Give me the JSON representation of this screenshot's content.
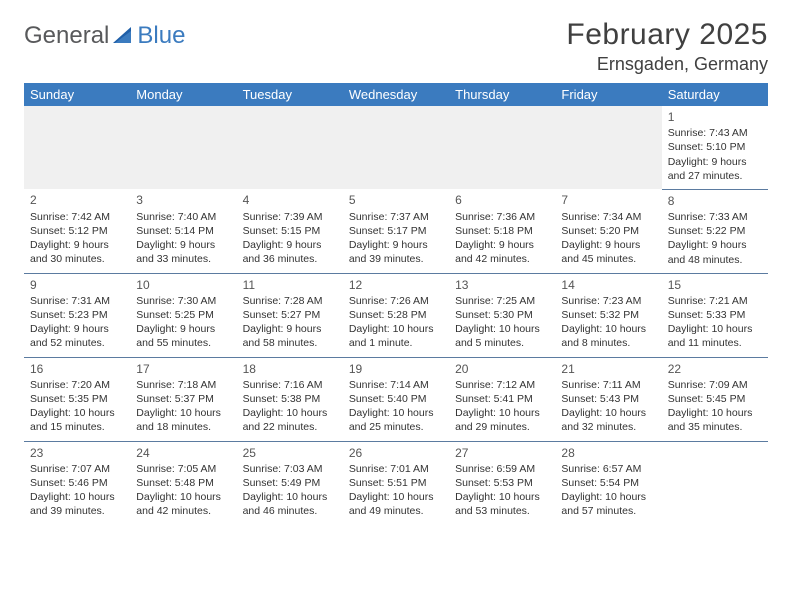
{
  "logo": {
    "word1": "General",
    "word2": "Blue"
  },
  "title": "February 2025",
  "location": "Ernsgaden, Germany",
  "columns": [
    "Sunday",
    "Monday",
    "Tuesday",
    "Wednesday",
    "Thursday",
    "Friday",
    "Saturday"
  ],
  "colors": {
    "header_bg": "#3b7bbf",
    "header_fg": "#ffffff",
    "rule": "#5b7ba0",
    "blank_bg": "#f0f0f0",
    "text": "#333333",
    "logo_gray": "#58595b",
    "logo_blue": "#3b7bbf"
  },
  "weeks": [
    [
      null,
      null,
      null,
      null,
      null,
      null,
      {
        "n": "1",
        "sr": "Sunrise: 7:43 AM",
        "ss": "Sunset: 5:10 PM",
        "dl1": "Daylight: 9 hours",
        "dl2": "and 27 minutes."
      }
    ],
    [
      {
        "n": "2",
        "sr": "Sunrise: 7:42 AM",
        "ss": "Sunset: 5:12 PM",
        "dl1": "Daylight: 9 hours",
        "dl2": "and 30 minutes."
      },
      {
        "n": "3",
        "sr": "Sunrise: 7:40 AM",
        "ss": "Sunset: 5:14 PM",
        "dl1": "Daylight: 9 hours",
        "dl2": "and 33 minutes."
      },
      {
        "n": "4",
        "sr": "Sunrise: 7:39 AM",
        "ss": "Sunset: 5:15 PM",
        "dl1": "Daylight: 9 hours",
        "dl2": "and 36 minutes."
      },
      {
        "n": "5",
        "sr": "Sunrise: 7:37 AM",
        "ss": "Sunset: 5:17 PM",
        "dl1": "Daylight: 9 hours",
        "dl2": "and 39 minutes."
      },
      {
        "n": "6",
        "sr": "Sunrise: 7:36 AM",
        "ss": "Sunset: 5:18 PM",
        "dl1": "Daylight: 9 hours",
        "dl2": "and 42 minutes."
      },
      {
        "n": "7",
        "sr": "Sunrise: 7:34 AM",
        "ss": "Sunset: 5:20 PM",
        "dl1": "Daylight: 9 hours",
        "dl2": "and 45 minutes."
      },
      {
        "n": "8",
        "sr": "Sunrise: 7:33 AM",
        "ss": "Sunset: 5:22 PM",
        "dl1": "Daylight: 9 hours",
        "dl2": "and 48 minutes."
      }
    ],
    [
      {
        "n": "9",
        "sr": "Sunrise: 7:31 AM",
        "ss": "Sunset: 5:23 PM",
        "dl1": "Daylight: 9 hours",
        "dl2": "and 52 minutes."
      },
      {
        "n": "10",
        "sr": "Sunrise: 7:30 AM",
        "ss": "Sunset: 5:25 PM",
        "dl1": "Daylight: 9 hours",
        "dl2": "and 55 minutes."
      },
      {
        "n": "11",
        "sr": "Sunrise: 7:28 AM",
        "ss": "Sunset: 5:27 PM",
        "dl1": "Daylight: 9 hours",
        "dl2": "and 58 minutes."
      },
      {
        "n": "12",
        "sr": "Sunrise: 7:26 AM",
        "ss": "Sunset: 5:28 PM",
        "dl1": "Daylight: 10 hours",
        "dl2": "and 1 minute."
      },
      {
        "n": "13",
        "sr": "Sunrise: 7:25 AM",
        "ss": "Sunset: 5:30 PM",
        "dl1": "Daylight: 10 hours",
        "dl2": "and 5 minutes."
      },
      {
        "n": "14",
        "sr": "Sunrise: 7:23 AM",
        "ss": "Sunset: 5:32 PM",
        "dl1": "Daylight: 10 hours",
        "dl2": "and 8 minutes."
      },
      {
        "n": "15",
        "sr": "Sunrise: 7:21 AM",
        "ss": "Sunset: 5:33 PM",
        "dl1": "Daylight: 10 hours",
        "dl2": "and 11 minutes."
      }
    ],
    [
      {
        "n": "16",
        "sr": "Sunrise: 7:20 AM",
        "ss": "Sunset: 5:35 PM",
        "dl1": "Daylight: 10 hours",
        "dl2": "and 15 minutes."
      },
      {
        "n": "17",
        "sr": "Sunrise: 7:18 AM",
        "ss": "Sunset: 5:37 PM",
        "dl1": "Daylight: 10 hours",
        "dl2": "and 18 minutes."
      },
      {
        "n": "18",
        "sr": "Sunrise: 7:16 AM",
        "ss": "Sunset: 5:38 PM",
        "dl1": "Daylight: 10 hours",
        "dl2": "and 22 minutes."
      },
      {
        "n": "19",
        "sr": "Sunrise: 7:14 AM",
        "ss": "Sunset: 5:40 PM",
        "dl1": "Daylight: 10 hours",
        "dl2": "and 25 minutes."
      },
      {
        "n": "20",
        "sr": "Sunrise: 7:12 AM",
        "ss": "Sunset: 5:41 PM",
        "dl1": "Daylight: 10 hours",
        "dl2": "and 29 minutes."
      },
      {
        "n": "21",
        "sr": "Sunrise: 7:11 AM",
        "ss": "Sunset: 5:43 PM",
        "dl1": "Daylight: 10 hours",
        "dl2": "and 32 minutes."
      },
      {
        "n": "22",
        "sr": "Sunrise: 7:09 AM",
        "ss": "Sunset: 5:45 PM",
        "dl1": "Daylight: 10 hours",
        "dl2": "and 35 minutes."
      }
    ],
    [
      {
        "n": "23",
        "sr": "Sunrise: 7:07 AM",
        "ss": "Sunset: 5:46 PM",
        "dl1": "Daylight: 10 hours",
        "dl2": "and 39 minutes."
      },
      {
        "n": "24",
        "sr": "Sunrise: 7:05 AM",
        "ss": "Sunset: 5:48 PM",
        "dl1": "Daylight: 10 hours",
        "dl2": "and 42 minutes."
      },
      {
        "n": "25",
        "sr": "Sunrise: 7:03 AM",
        "ss": "Sunset: 5:49 PM",
        "dl1": "Daylight: 10 hours",
        "dl2": "and 46 minutes."
      },
      {
        "n": "26",
        "sr": "Sunrise: 7:01 AM",
        "ss": "Sunset: 5:51 PM",
        "dl1": "Daylight: 10 hours",
        "dl2": "and 49 minutes."
      },
      {
        "n": "27",
        "sr": "Sunrise: 6:59 AM",
        "ss": "Sunset: 5:53 PM",
        "dl1": "Daylight: 10 hours",
        "dl2": "and 53 minutes."
      },
      {
        "n": "28",
        "sr": "Sunrise: 6:57 AM",
        "ss": "Sunset: 5:54 PM",
        "dl1": "Daylight: 10 hours",
        "dl2": "and 57 minutes."
      },
      null
    ]
  ]
}
